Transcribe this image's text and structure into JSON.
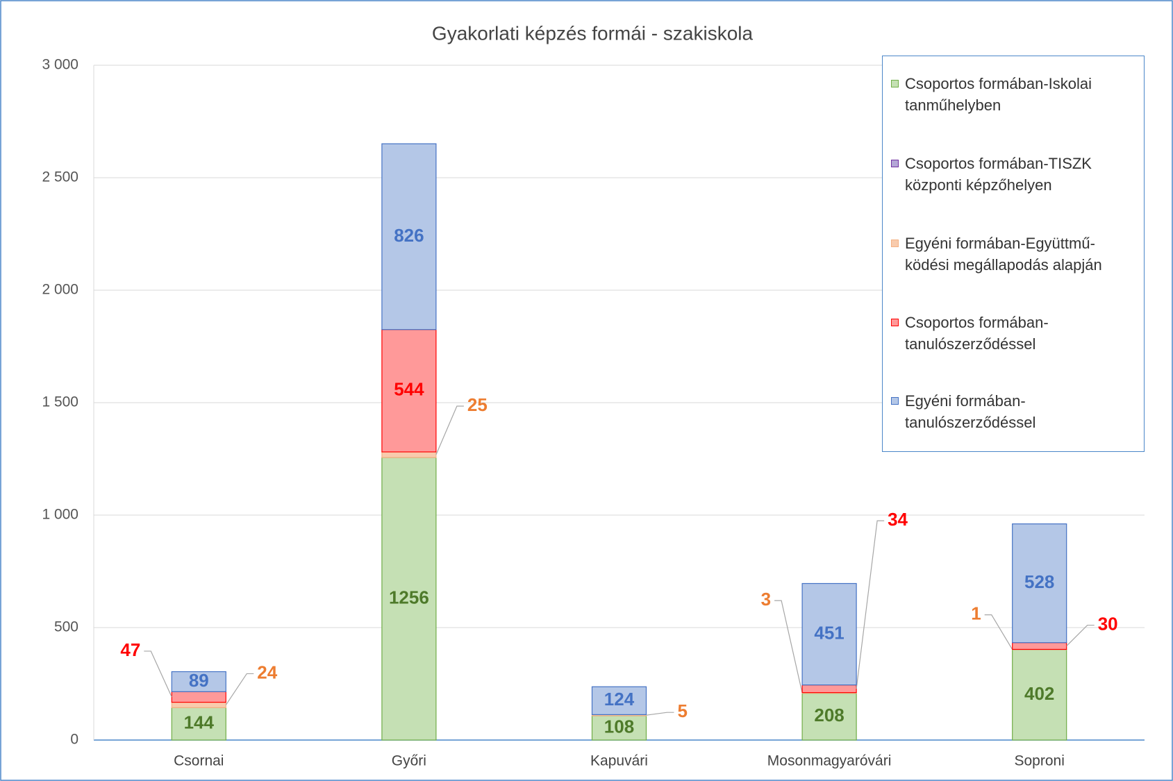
{
  "chart_data": {
    "type": "bar",
    "stacked": true,
    "title": "Gyakorlati képzés formái - szakiskola",
    "categories": [
      "Csornai",
      "Győri",
      "Kapuvári",
      "Mosonmagyaróvári",
      "Soproni"
    ],
    "series": [
      {
        "name": "Csoportos formában-Iskolai tanműhelyben",
        "color": "#c5e0b4",
        "stroke": "#70ad47",
        "label_color": "#4e7a2a",
        "values": [
          144,
          1256,
          108,
          208,
          402
        ]
      },
      {
        "name": "Csoportos formában-TISZK központi képzőhelyen",
        "color": "#b4a7d6",
        "stroke": "#7030a0",
        "label_color": "#7030a0",
        "values": [
          null,
          null,
          null,
          null,
          null
        ]
      },
      {
        "name": "Egyéni formában-Együttmű-ködési megállapodás alapján",
        "color": "#f8cbad",
        "stroke": "#f4b183",
        "label_color": "#ed7d31",
        "values": [
          24,
          25,
          5,
          3,
          1
        ]
      },
      {
        "name": "Csoportos formában-tanulószerződéssel",
        "color": "#ff9999",
        "stroke": "#ff0000",
        "label_color": "#ff0000",
        "values": [
          47,
          544,
          null,
          34,
          30
        ]
      },
      {
        "name": "Egyéni formában-tanulószerződéssel",
        "color": "#b4c7e7",
        "stroke": "#4472c4",
        "label_color": "#4472c4",
        "values": [
          89,
          826,
          124,
          451,
          528
        ]
      }
    ],
    "ylim": [
      0,
      3000
    ],
    "yticks": [
      0,
      500,
      {
        "value": 1000,
        "label": "1 000"
      },
      {
        "value": 1500,
        "label": "1 500"
      },
      {
        "value": 2000,
        "label": "2 000"
      },
      {
        "value": 2500,
        "label": "2 500"
      },
      {
        "value": 3000,
        "label": "3 000"
      }
    ],
    "grid": true,
    "legend": "right"
  }
}
